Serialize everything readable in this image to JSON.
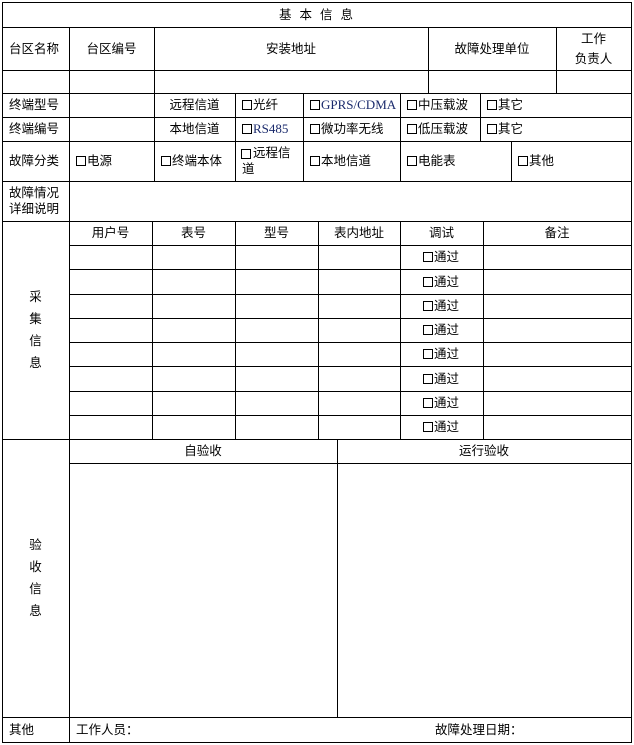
{
  "title": "基 本 信 息",
  "header": {
    "area_name": "台区名称",
    "area_code": "台区编号",
    "install_address": "安装地址",
    "repair_unit": "故障处理单位",
    "responsible": "工作\n负责人"
  },
  "terminal": {
    "model_label": "终端型号",
    "serial_label": "终端编号",
    "remote_channel": "远程信道",
    "local_channel": "本地信道",
    "remote_options": [
      "光纤",
      "GPRS/CDMA",
      "中压载波",
      "其它"
    ],
    "local_options": [
      "RS485",
      "微功率无线",
      "低压载波",
      "其它"
    ]
  },
  "fault": {
    "label": "故障分类",
    "options": [
      "电源",
      "终端本体",
      "远程信\n道",
      "本地信道",
      "电能表",
      "其他"
    ],
    "detail_label": "故障情况\n详细说明"
  },
  "collection": {
    "label": "采\n集\n信\n息",
    "columns": [
      "用户号",
      "表号",
      "型号",
      "表内地址",
      "调试",
      "备注"
    ],
    "pass_label": "通过",
    "row_count": 8
  },
  "acceptance": {
    "label": "验\n收\n信\n息",
    "self": "自验收",
    "runtime": "运行验收"
  },
  "footer": {
    "label": "其他",
    "worker": "工作人员：",
    "date": "故障处理日期："
  }
}
